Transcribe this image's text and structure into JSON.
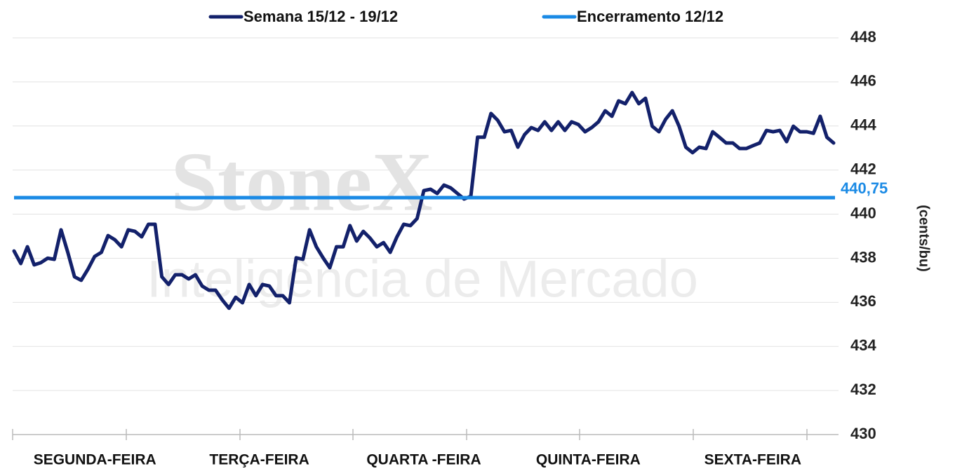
{
  "chart_data": {
    "type": "line",
    "watermark": {
      "brand": "StoneX",
      "tagline": "Inteligência de Mercado"
    },
    "y_label": "(cents/bu)",
    "x_labels": [
      "SEGUNDA-FEIRA",
      "TERÇA-FEIRA",
      "QUARTA -FEIRA",
      "QUINTA-FEIRA",
      "SEXTA-FEIRA"
    ],
    "ylim": [
      430,
      448
    ],
    "yticks": [
      430,
      432,
      434,
      436,
      438,
      440,
      442,
      444,
      446,
      448
    ],
    "grid": true,
    "series": [
      {
        "name": "Semana 15/12 - 19/12",
        "color": "#13216b",
        "values": [
          438.33,
          437.76,
          438.52,
          437.7,
          437.8,
          438.0,
          437.95,
          439.29,
          438.27,
          437.16,
          437.0,
          437.5,
          438.08,
          438.27,
          439.03,
          438.84,
          438.52,
          439.29,
          439.22,
          438.97,
          439.54,
          439.54,
          437.16,
          436.81,
          437.25,
          437.25,
          437.06,
          437.25,
          436.74,
          436.55,
          436.55,
          436.11,
          435.73,
          436.23,
          435.98,
          436.81,
          436.3,
          436.81,
          436.74,
          436.3,
          436.3,
          435.98,
          438.02,
          437.95,
          439.29,
          438.52,
          438.02,
          437.57,
          438.52,
          438.52,
          439.48,
          438.78,
          439.22,
          438.91,
          438.52,
          438.71,
          438.27,
          438.97,
          439.54,
          439.48,
          439.8,
          441.07,
          441.13,
          440.94,
          441.32,
          441.19,
          440.94,
          440.69,
          440.81,
          443.49,
          443.49,
          444.57,
          444.26,
          443.74,
          443.8,
          443.04,
          443.61,
          443.93,
          443.8,
          444.19,
          443.8,
          444.19,
          443.8,
          444.19,
          444.07,
          443.74,
          443.93,
          444.19,
          444.69,
          444.44,
          445.14,
          445.01,
          445.52,
          445.01,
          445.26,
          443.99,
          443.74,
          444.31,
          444.69,
          443.99,
          443.04,
          442.79,
          443.04,
          442.98,
          443.74,
          443.49,
          443.23,
          443.23,
          442.98,
          442.98,
          443.11,
          443.23,
          443.8,
          443.74,
          443.8,
          443.29,
          443.99,
          443.74,
          443.74,
          443.67,
          444.44,
          443.49,
          443.23
        ]
      },
      {
        "name": "Encerramento 12/12",
        "color": "#1a8ae5",
        "reference": true,
        "values": [
          440.75
        ],
        "value_labels": [
          "440,75"
        ]
      }
    ]
  }
}
